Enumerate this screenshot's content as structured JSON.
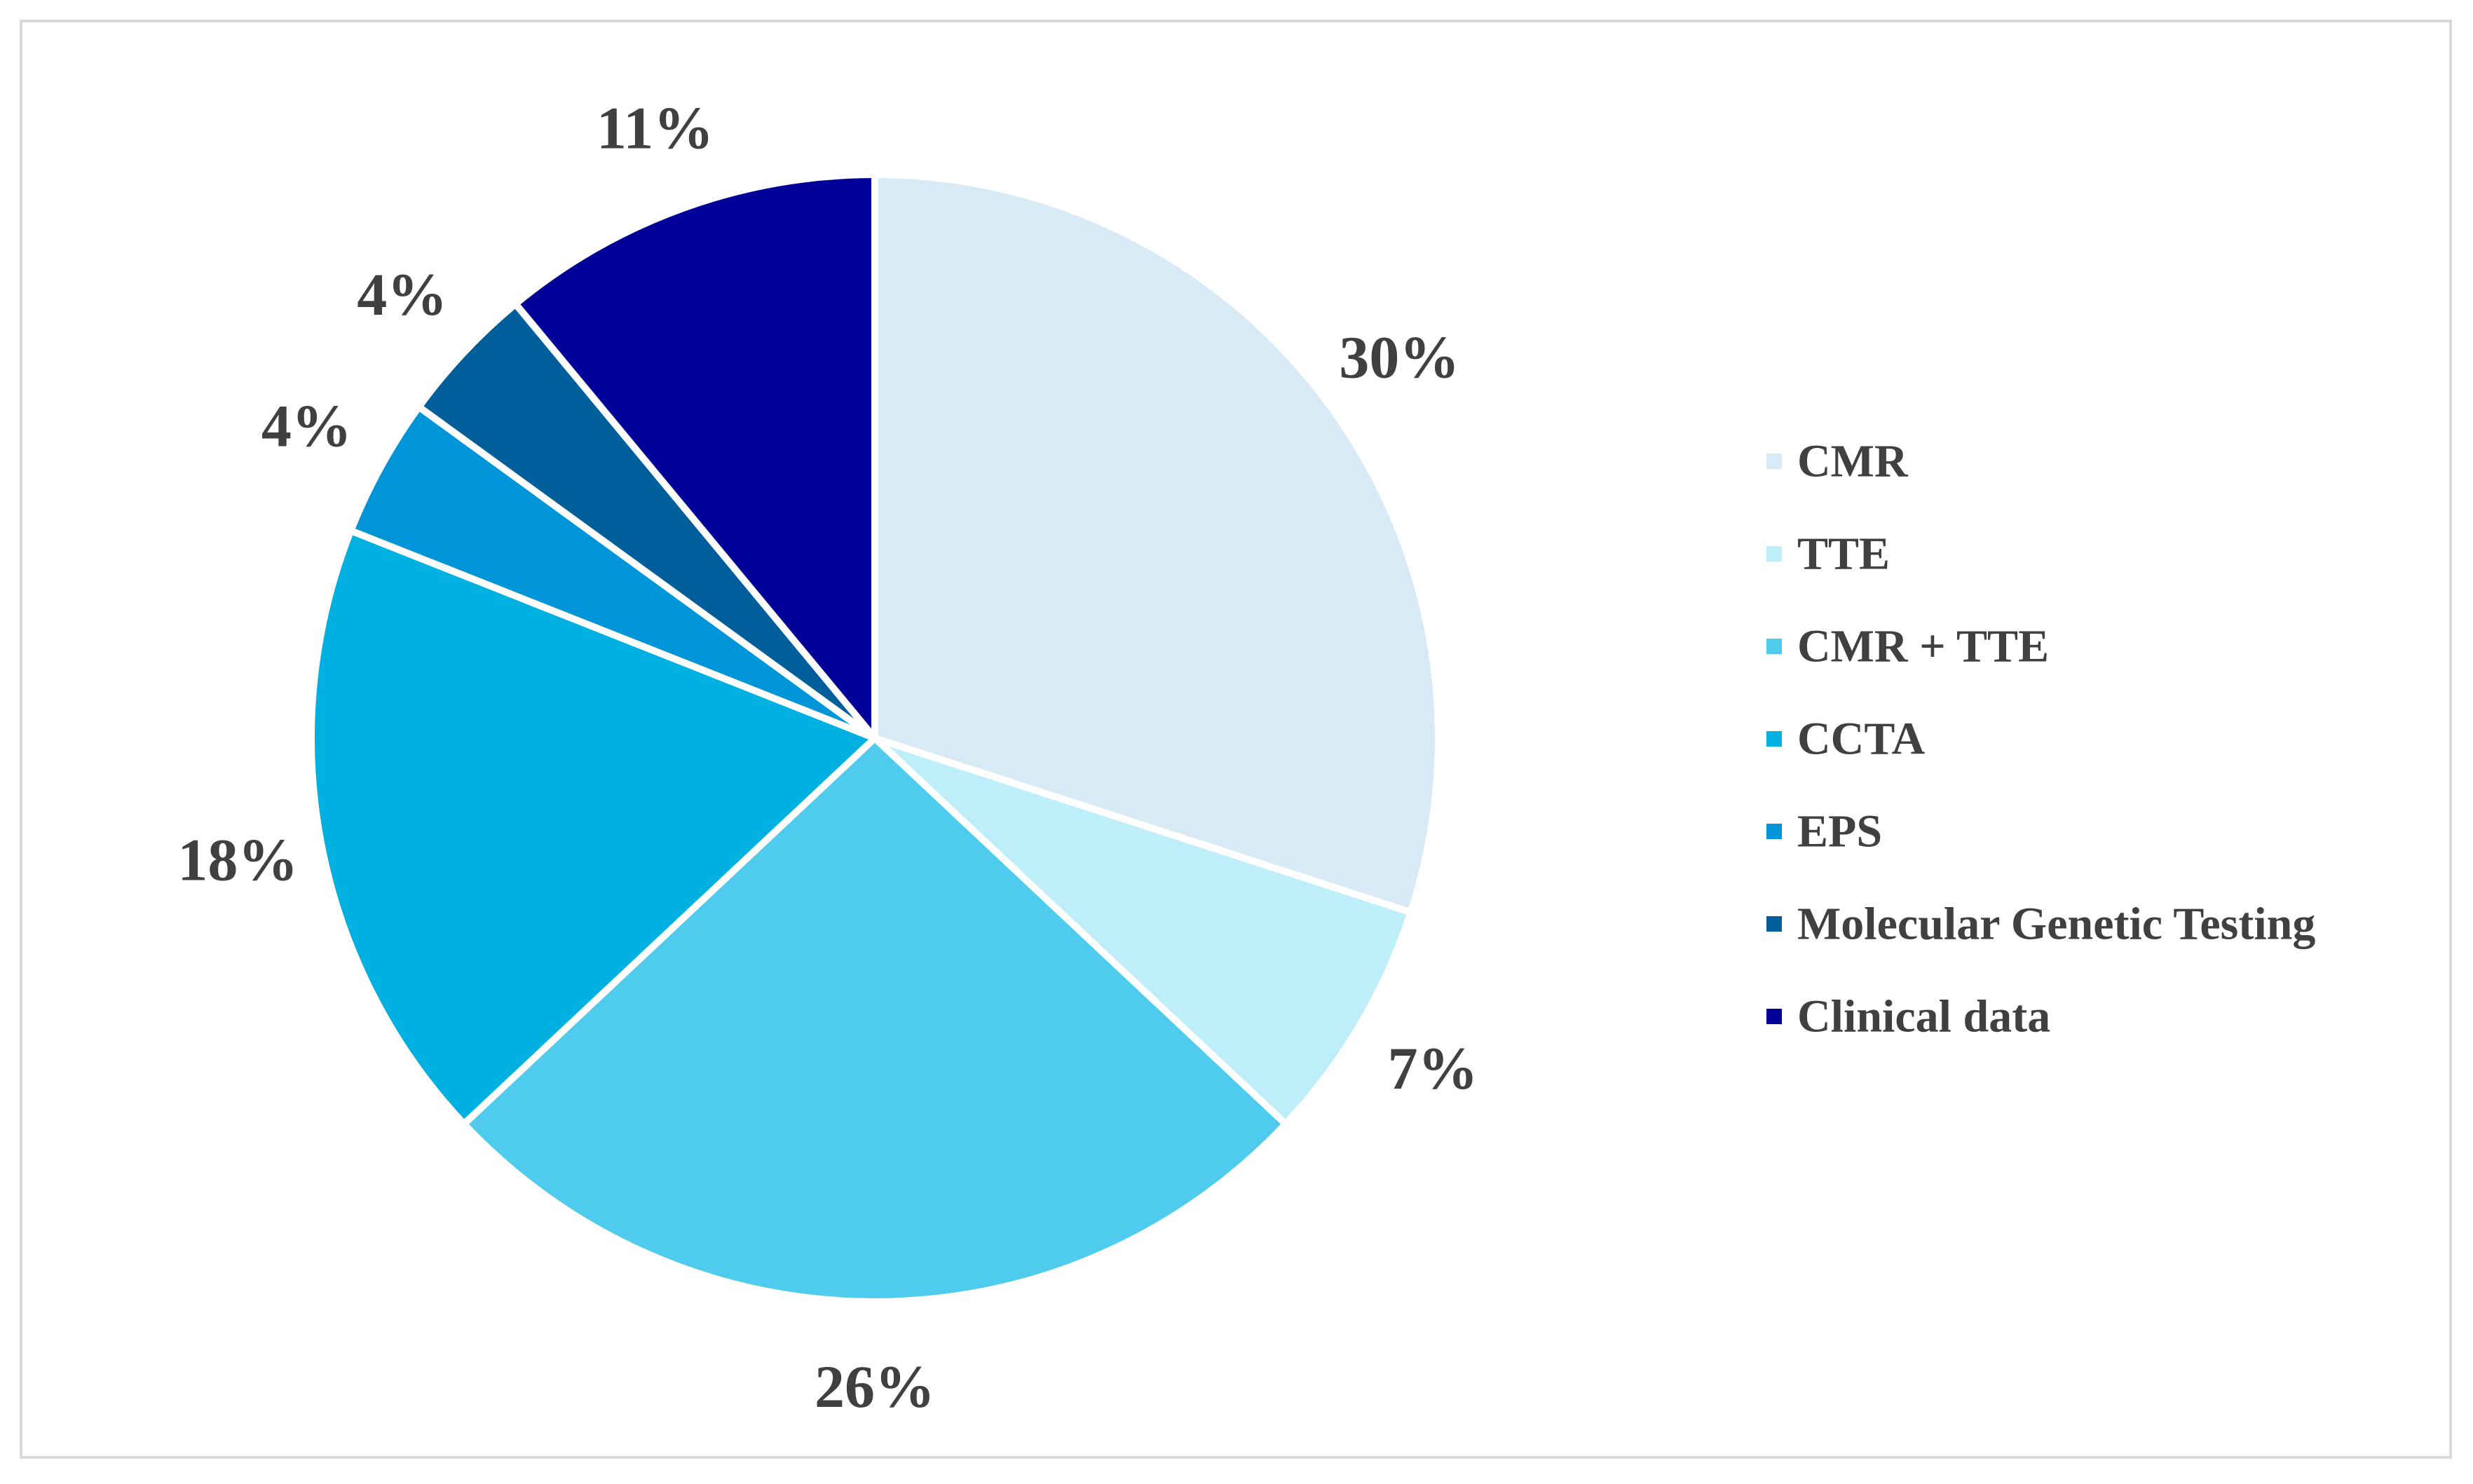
{
  "chart_data": {
    "type": "pie",
    "title": "",
    "categories": [
      "CMR",
      "TTE",
      "CMR + TTE",
      "CCTA",
      "EPS",
      "Molecular Genetic Testing",
      "Clinical data"
    ],
    "values": [
      30,
      7,
      26,
      18,
      4,
      4,
      11
    ],
    "labels": [
      "30%",
      "7%",
      "26%",
      "18%",
      "4%",
      "4%",
      "11%"
    ],
    "colors": [
      "#d9eaf7",
      "#bfeefb",
      "#4fcbed",
      "#00b0e0",
      "#0094d8",
      "#005f9a",
      "#000099"
    ],
    "start_angle_deg": 0,
    "direction": "clockwise",
    "legend_position": "right"
  }
}
